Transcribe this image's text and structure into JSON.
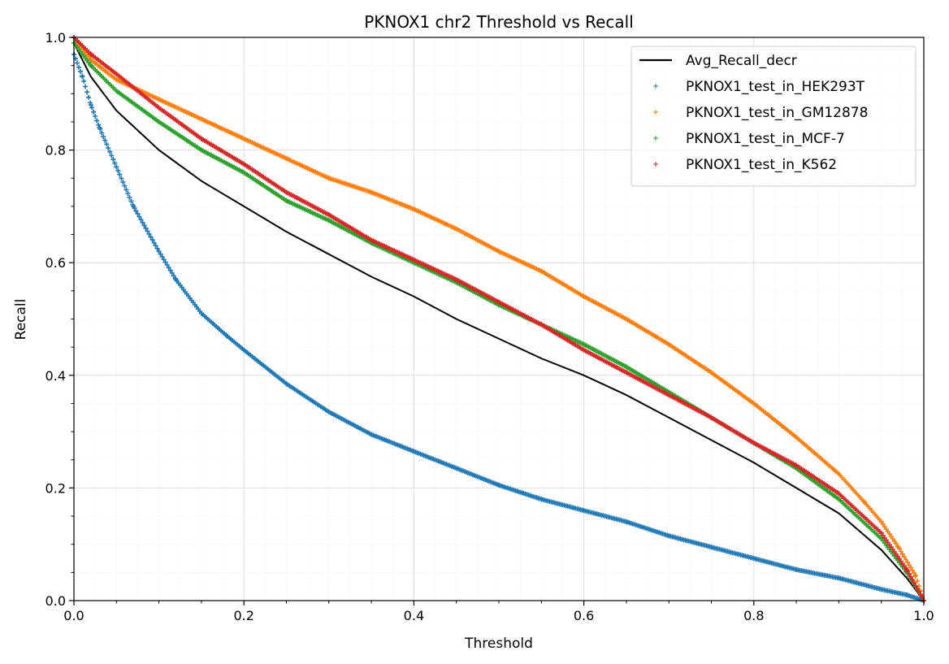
{
  "chart_data": {
    "type": "scatter",
    "title": "PKNOX1 chr2 Threshold vs Recall",
    "xlabel": "Threshold",
    "ylabel": "Recall",
    "xlim": [
      0.0,
      1.0
    ],
    "ylim": [
      0.0,
      1.0
    ],
    "xticks": [
      "0.0",
      "0.2",
      "0.4",
      "0.6",
      "0.8",
      "1.0"
    ],
    "yticks": [
      "0.0",
      "0.2",
      "0.4",
      "0.6",
      "0.8",
      "1.0"
    ],
    "grid": true,
    "minor_grid": true,
    "legend_position": "top-right",
    "series": [
      {
        "name": "Avg_Recall_decr",
        "kind": "line",
        "color": "#000000",
        "x": [
          0.0,
          0.02,
          0.05,
          0.1,
          0.15,
          0.2,
          0.25,
          0.3,
          0.35,
          0.4,
          0.45,
          0.5,
          0.55,
          0.6,
          0.65,
          0.7,
          0.75,
          0.8,
          0.85,
          0.9,
          0.95,
          0.98,
          1.0
        ],
        "y": [
          0.99,
          0.93,
          0.87,
          0.8,
          0.745,
          0.7,
          0.655,
          0.615,
          0.575,
          0.54,
          0.5,
          0.465,
          0.43,
          0.4,
          0.365,
          0.325,
          0.285,
          0.245,
          0.2,
          0.155,
          0.09,
          0.04,
          0.0
        ]
      },
      {
        "name": "PKNOX1_test_in_HEK293T",
        "kind": "scatter",
        "color": "#1f77b4",
        "x": [
          0.0,
          0.01,
          0.02,
          0.03,
          0.05,
          0.07,
          0.1,
          0.12,
          0.15,
          0.18,
          0.2,
          0.25,
          0.3,
          0.35,
          0.4,
          0.45,
          0.5,
          0.55,
          0.6,
          0.65,
          0.7,
          0.75,
          0.8,
          0.85,
          0.9,
          0.95,
          0.98,
          1.0
        ],
        "y": [
          0.97,
          0.93,
          0.88,
          0.84,
          0.77,
          0.7,
          0.62,
          0.57,
          0.51,
          0.47,
          0.445,
          0.385,
          0.335,
          0.295,
          0.265,
          0.235,
          0.205,
          0.18,
          0.16,
          0.14,
          0.115,
          0.095,
          0.075,
          0.055,
          0.04,
          0.02,
          0.01,
          0.0
        ]
      },
      {
        "name": "PKNOX1_test_in_GM12878",
        "kind": "scatter",
        "color": "#ff7f0e",
        "x": [
          0.0,
          0.02,
          0.05,
          0.1,
          0.15,
          0.2,
          0.25,
          0.3,
          0.35,
          0.4,
          0.45,
          0.5,
          0.55,
          0.6,
          0.65,
          0.7,
          0.75,
          0.8,
          0.85,
          0.9,
          0.93,
          0.95,
          0.97,
          0.99,
          1.0
        ],
        "y": [
          1.0,
          0.96,
          0.925,
          0.89,
          0.855,
          0.82,
          0.785,
          0.75,
          0.725,
          0.695,
          0.66,
          0.62,
          0.585,
          0.54,
          0.5,
          0.455,
          0.405,
          0.35,
          0.29,
          0.225,
          0.175,
          0.14,
          0.095,
          0.045,
          0.0
        ]
      },
      {
        "name": "PKNOX1_test_in_MCF-7",
        "kind": "scatter",
        "color": "#2ca02c",
        "x": [
          0.0,
          0.02,
          0.05,
          0.1,
          0.15,
          0.2,
          0.25,
          0.3,
          0.35,
          0.4,
          0.45,
          0.5,
          0.55,
          0.6,
          0.65,
          0.7,
          0.75,
          0.8,
          0.85,
          0.9,
          0.95,
          0.98,
          1.0
        ],
        "y": [
          0.99,
          0.95,
          0.905,
          0.85,
          0.8,
          0.76,
          0.71,
          0.675,
          0.635,
          0.6,
          0.565,
          0.525,
          0.49,
          0.455,
          0.415,
          0.37,
          0.325,
          0.28,
          0.235,
          0.18,
          0.11,
          0.05,
          0.0
        ]
      },
      {
        "name": "PKNOX1_test_in_K562",
        "kind": "scatter",
        "color": "#d62728",
        "x": [
          0.0,
          0.02,
          0.05,
          0.1,
          0.15,
          0.2,
          0.25,
          0.3,
          0.35,
          0.4,
          0.45,
          0.5,
          0.55,
          0.6,
          0.65,
          0.7,
          0.75,
          0.8,
          0.85,
          0.9,
          0.95,
          0.98,
          1.0
        ],
        "y": [
          1.0,
          0.97,
          0.935,
          0.875,
          0.82,
          0.775,
          0.725,
          0.685,
          0.64,
          0.605,
          0.57,
          0.53,
          0.49,
          0.445,
          0.405,
          0.365,
          0.325,
          0.28,
          0.24,
          0.19,
          0.12,
          0.055,
          0.0
        ]
      }
    ]
  }
}
